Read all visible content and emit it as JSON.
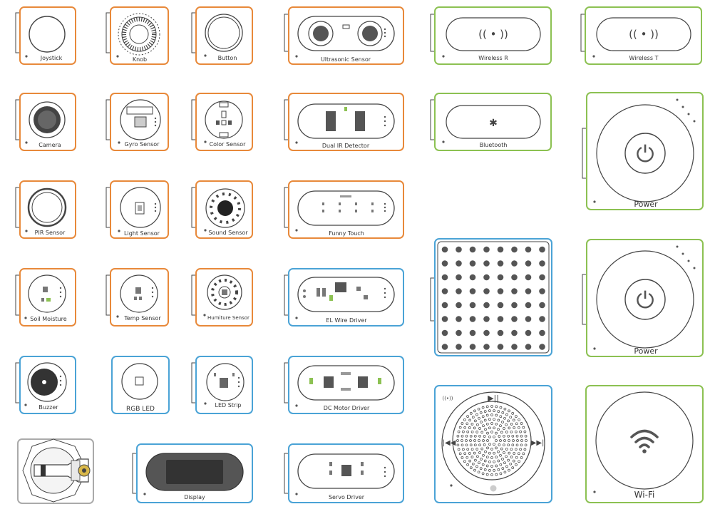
{
  "colors": {
    "input": "#e8893a",
    "output": "#4aa3d6",
    "comm": "#8cc152",
    "line": "#444444",
    "dot": "#555555",
    "panel": "#ffffff"
  },
  "modules": {
    "joystick": "Joystick",
    "knob": "Knob",
    "button": "Button",
    "ultrasonic": "Ultrasonic Sensor",
    "wireless_r": "Wireless R",
    "wireless_t": "Wireless T",
    "camera": "Camera",
    "gyro": "Gyro Sensor",
    "color": "Color Sensor",
    "dual_ir": "Dual IR Detector",
    "bluetooth": "Bluetooth",
    "power_1": "Power",
    "pir": "PIR Sensor",
    "light": "Light Sensor",
    "sound": "Sound Sensor",
    "funny_touch": "Funny Touch",
    "soil": "Soil Moisture",
    "temp": "Temp Sensor",
    "humiture": "Humiture Sensor",
    "el_wire": "EL Wire Driver",
    "power_2": "Power",
    "buzzer": "Buzzer",
    "rgb_led": "RGB LED",
    "led_strip": "LED Strip",
    "dc_motor": "DC Motor Driver",
    "display": "Display",
    "servo": "Servo Driver",
    "wifi": "Wi-Fi"
  },
  "icons": {
    "wireless": "(( • ))",
    "bluetooth": "✱",
    "power": "⏻"
  }
}
